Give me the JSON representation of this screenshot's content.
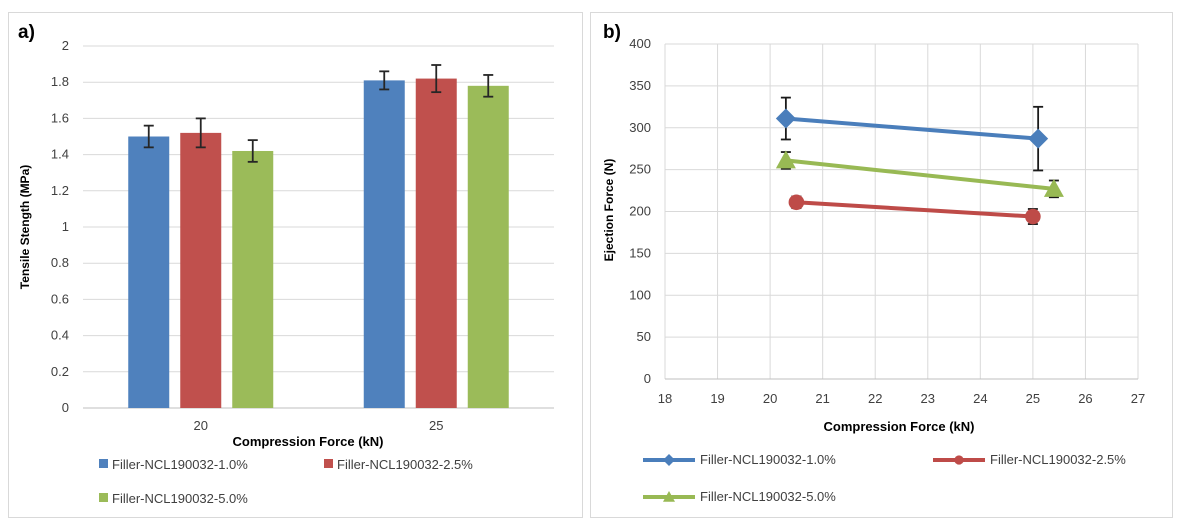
{
  "chart_data": [
    {
      "id": "a",
      "panel_label": "a)",
      "type": "bar",
      "categories": [
        "20",
        "25"
      ],
      "series": [
        {
          "name": "Filler-NCL190032-1.0%",
          "color": "#4f81bd",
          "values": [
            1.5,
            1.81
          ],
          "error": [
            0.06,
            0.05
          ]
        },
        {
          "name": "Filler-NCL190032-2.5%",
          "color": "#c0504d",
          "values": [
            1.52,
            1.82
          ],
          "error": [
            0.08,
            0.075
          ]
        },
        {
          "name": "Filler-NCL190032-5.0%",
          "color": "#9bbb59",
          "values": [
            1.42,
            1.78
          ],
          "error": [
            0.06,
            0.06
          ]
        }
      ],
      "xlabel": "Compression Force (kN)",
      "ylabel": "Tensile Stength (MPa)",
      "ylim": [
        0,
        2
      ],
      "yticks": [
        "0",
        "0.2",
        "0.4",
        "0.6",
        "0.8",
        "1",
        "1.2",
        "1.4",
        "1.6",
        "1.8",
        "2"
      ],
      "grid": true,
      "legend_position": "bottom"
    },
    {
      "id": "b",
      "panel_label": "b)",
      "type": "line",
      "series": [
        {
          "name": "Filler-NCL190032-1.0%",
          "color": "#4a7ebb",
          "marker": "diamond",
          "x": [
            20.3,
            25.1
          ],
          "y": [
            311,
            287
          ],
          "error": [
            25,
            38
          ]
        },
        {
          "name": "Filler-NCL190032-2.5%",
          "color": "#be4b48",
          "marker": "circle",
          "x": [
            20.5,
            25.0
          ],
          "y": [
            211,
            194
          ],
          "error": [
            7,
            9
          ]
        },
        {
          "name": "Filler-NCL190032-5.0%",
          "color": "#98b954",
          "marker": "triangle",
          "x": [
            20.3,
            25.4
          ],
          "y": [
            261,
            227
          ],
          "error": [
            10,
            10
          ]
        }
      ],
      "xlabel": "Compression Force (kN)",
      "ylabel": "Ejection Force (N)",
      "xlim": [
        18,
        27
      ],
      "ylim": [
        0,
        400
      ],
      "xticks": [
        "18",
        "19",
        "20",
        "21",
        "22",
        "23",
        "24",
        "25",
        "26",
        "27"
      ],
      "yticks": [
        "0",
        "50",
        "100",
        "150",
        "200",
        "250",
        "300",
        "350",
        "400"
      ],
      "grid": true,
      "legend_position": "bottom"
    }
  ]
}
